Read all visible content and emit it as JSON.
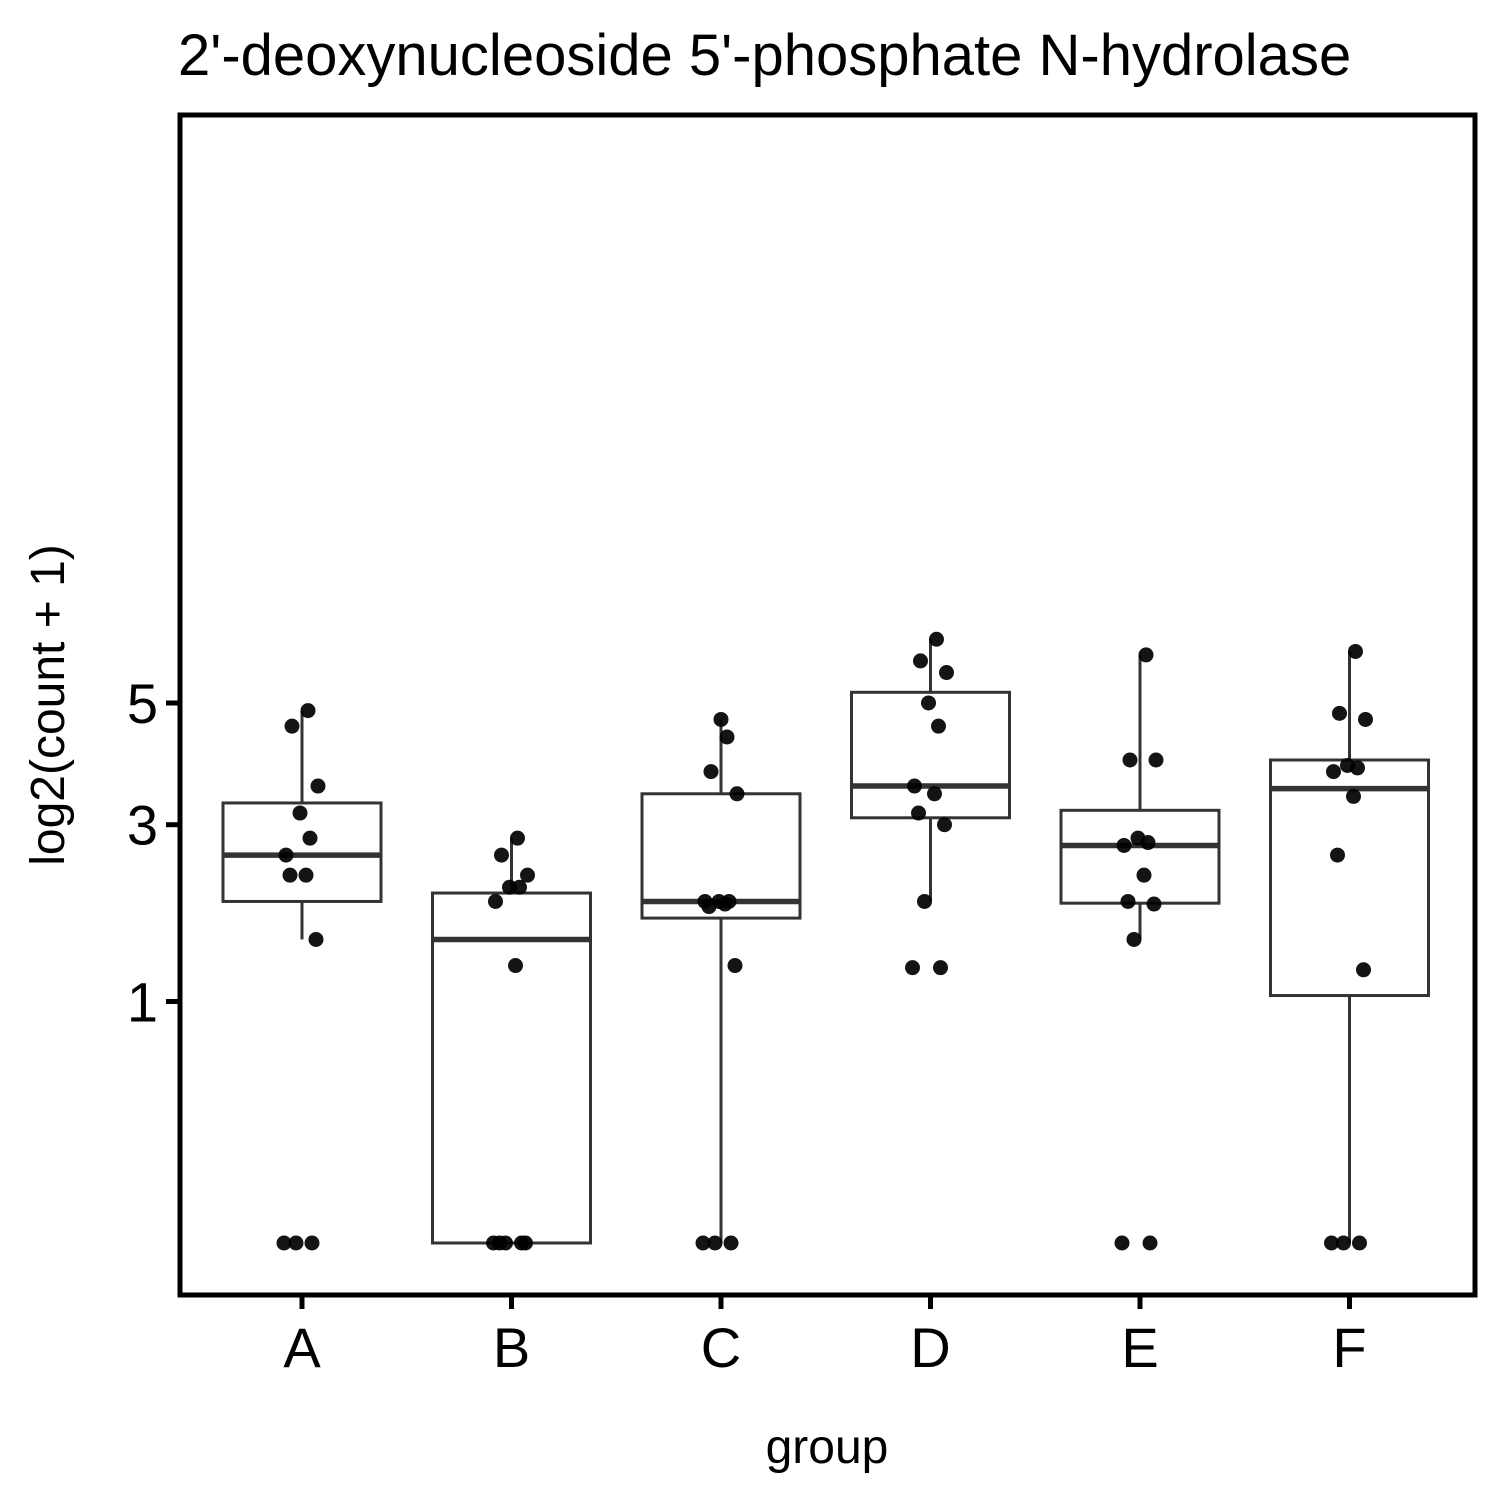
{
  "chart_data": {
    "type": "box",
    "title": "2'-deoxynucleoside 5'-phosphate N-hydrolase",
    "xlabel": "group",
    "ylabel": "log2(count + 1)",
    "y_scale": "sqrt",
    "ylim": [
      0,
      6.2
    ],
    "yticks": [
      1,
      3,
      5
    ],
    "grid": false,
    "categories": [
      "A",
      "B",
      "C",
      "D",
      "E",
      "F"
    ],
    "boxes": [
      {
        "group": "A",
        "whisker_low": 1.58,
        "q1": 2.0,
        "median": 2.58,
        "q3": 3.32,
        "whisker_high": 4.86
      },
      {
        "group": "B",
        "whisker_low": 0.0,
        "q1": 0.0,
        "median": 1.58,
        "q3": 2.1,
        "whisker_high": 2.81
      },
      {
        "group": "C",
        "whisker_low": 0.0,
        "q1": 1.81,
        "median": 2.0,
        "q3": 3.46,
        "whisker_high": 4.7
      },
      {
        "group": "D",
        "whisker_low": 2.0,
        "q1": 3.1,
        "median": 3.58,
        "q3": 5.2,
        "whisker_high": 6.25
      },
      {
        "group": "E",
        "whisker_low": 1.58,
        "q1": 1.98,
        "median": 2.71,
        "q3": 3.21,
        "whisker_high": 5.93
      },
      {
        "group": "F",
        "whisker_low": 0.0,
        "q1": 1.05,
        "median": 3.54,
        "q3": 4.0,
        "whisker_high": 6.0
      }
    ],
    "points": [
      {
        "group": "A",
        "values": [
          0.0,
          0.0,
          0.0,
          1.58,
          2.32,
          2.32,
          2.58,
          2.81,
          3.17,
          3.58,
          4.58,
          4.86
        ]
      },
      {
        "group": "B",
        "values": [
          0.0,
          0.0,
          0.0,
          0.0,
          0.0,
          1.32,
          2.0,
          2.17,
          2.17,
          2.32,
          2.58,
          2.81
        ]
      },
      {
        "group": "C",
        "values": [
          0.0,
          0.0,
          0.0,
          1.32,
          1.94,
          1.97,
          2.0,
          2.0,
          2.0,
          3.46,
          3.81,
          4.39,
          4.7
        ]
      },
      {
        "group": "D",
        "values": [
          1.3,
          1.3,
          2.0,
          3.0,
          3.17,
          3.46,
          3.58,
          4.58,
          5.0,
          5.58,
          5.81,
          6.25
        ]
      },
      {
        "group": "E",
        "values": [
          0.0,
          0.0,
          1.58,
          1.97,
          2.0,
          2.32,
          2.71,
          2.75,
          2.81,
          4.0,
          4.0,
          5.93
        ]
      },
      {
        "group": "F",
        "values": [
          0.0,
          0.0,
          0.0,
          1.28,
          2.58,
          3.42,
          3.81,
          3.87,
          3.91,
          4.7,
          4.81,
          6.0
        ]
      }
    ]
  }
}
